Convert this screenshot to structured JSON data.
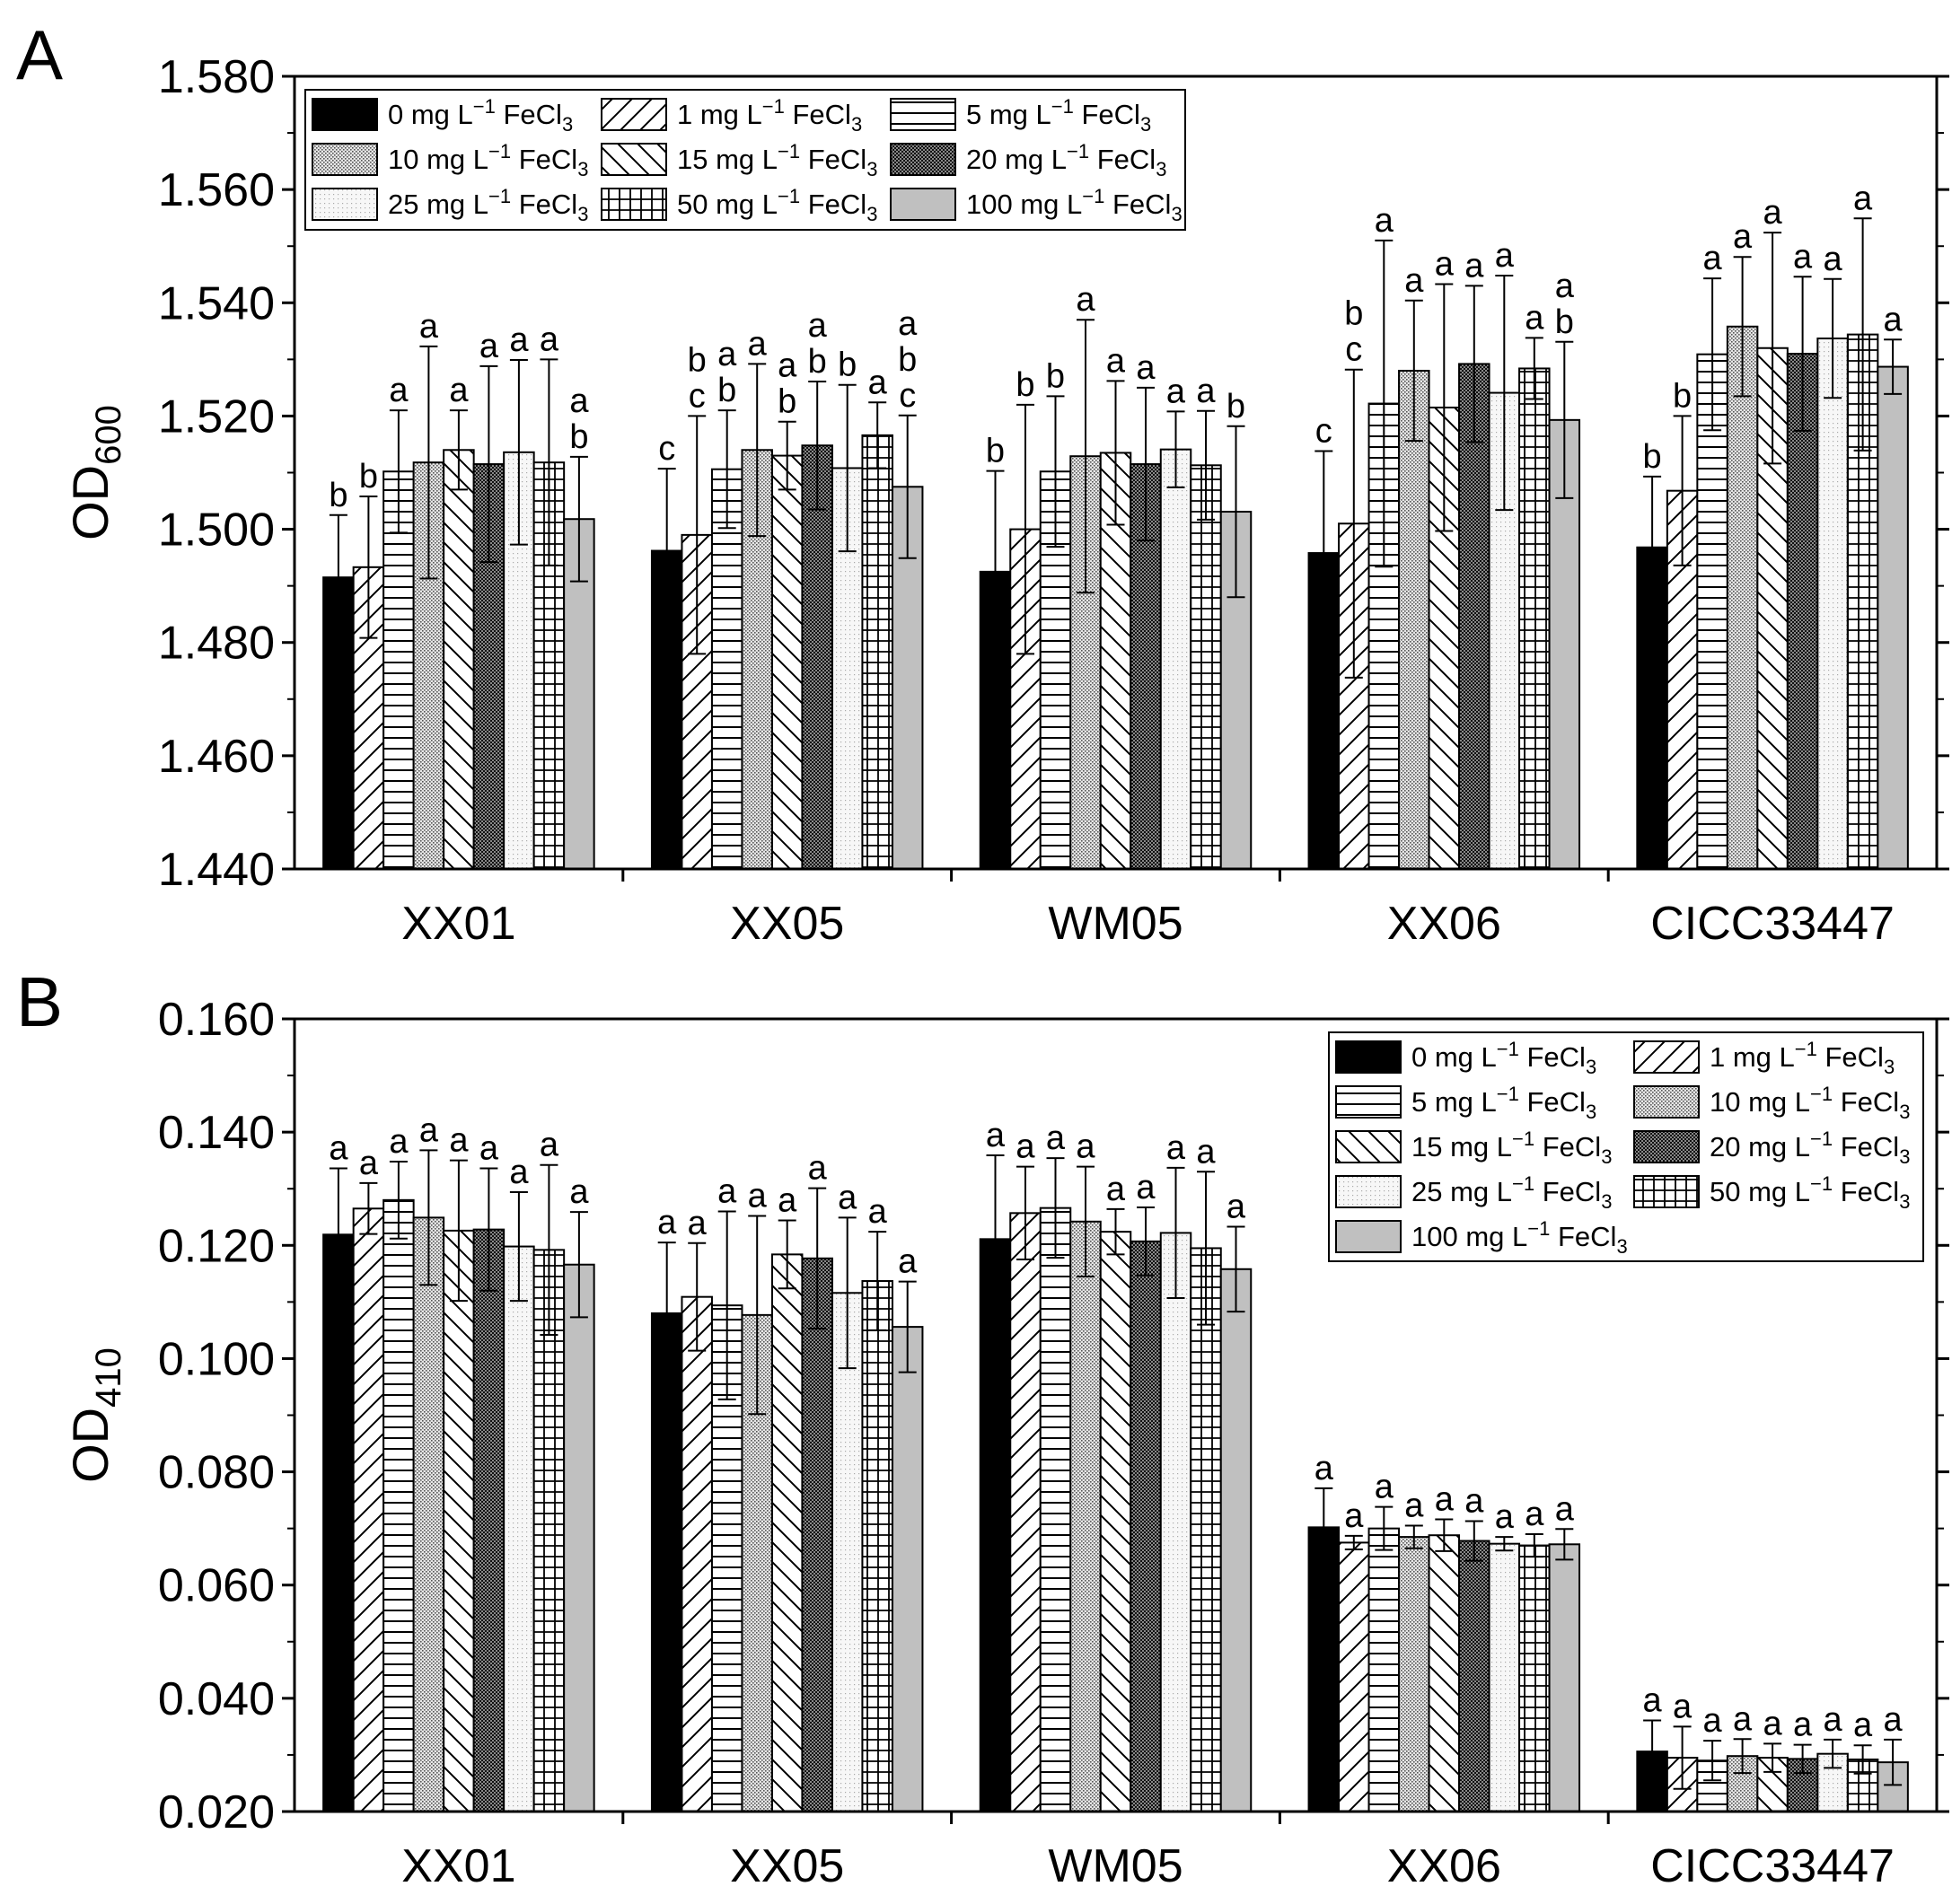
{
  "colors": {
    "axis": "#000000",
    "bar_black": "#000000",
    "bar_gray": "#c0c0c0",
    "bar_white": "#ffffff"
  },
  "legend_entries": [
    {
      "prefix": "0 mg L",
      "sup": "−1",
      "suffix": " FeCl",
      "sub": "3",
      "pattern": "black"
    },
    {
      "prefix": "1 mg L",
      "sup": "−1",
      "suffix": " FeCl",
      "sub": "3",
      "pattern": "diag-up"
    },
    {
      "prefix": "5 mg L",
      "sup": "−1",
      "suffix": " FeCl",
      "sub": "3",
      "pattern": "horiz"
    },
    {
      "prefix": "10 mg L",
      "sup": "−1",
      "suffix": " FeCl",
      "sub": "3",
      "pattern": "fine-dot"
    },
    {
      "prefix": "15 mg L",
      "sup": "−1",
      "suffix": " FeCl",
      "sub": "3",
      "pattern": "diag-down"
    },
    {
      "prefix": "20 mg L",
      "sup": "−1",
      "suffix": " FeCl",
      "sub": "3",
      "pattern": "dense-dot"
    },
    {
      "prefix": "25 mg L",
      "sup": "−1",
      "suffix": " FeCl",
      "sub": "3",
      "pattern": "light-dot"
    },
    {
      "prefix": "50 mg L",
      "sup": "−1",
      "suffix": " FeCl",
      "sub": "3",
      "pattern": "grid"
    },
    {
      "prefix": "100 mg L",
      "sup": "−1",
      "suffix": " FeCl",
      "sub": "3",
      "pattern": "gray"
    }
  ],
  "chart_data": [
    {
      "type": "bar",
      "panel": "A",
      "ylabel": "OD",
      "ylabel_sub": "600",
      "ylim": [
        1.44,
        1.58
      ],
      "yticks": [
        "1.440",
        "1.460",
        "1.480",
        "1.500",
        "1.520",
        "1.540",
        "1.560",
        "1.580"
      ],
      "legend_position": "top-left",
      "categories": [
        "XX01",
        "XX05",
        "WM05",
        "XX06",
        "CICC33447"
      ],
      "series": [
        {
          "name": "0 mg L−1 FeCl3",
          "values": [
            1.4915,
            1.4962,
            1.4925,
            1.4958,
            1.4968
          ],
          "errors": [
            0.011,
            0.0145,
            0.0178,
            0.018,
            0.0125
          ],
          "letters": [
            "b",
            "c",
            "b",
            "c",
            "b"
          ]
        },
        {
          "name": "1 mg L−1 FeCl3",
          "values": [
            1.4933,
            1.499,
            1.5,
            1.501,
            1.5068
          ],
          "errors": [
            0.0125,
            0.021,
            0.022,
            0.0272,
            0.0132
          ],
          "letters": [
            "b",
            "bc",
            "b",
            "bc",
            "b"
          ]
        },
        {
          "name": "5 mg L−1 FeCl3",
          "values": [
            1.5102,
            1.5106,
            1.5102,
            1.5222,
            1.5309
          ],
          "errors": [
            0.0108,
            0.0104,
            0.0133,
            0.0288,
            0.0134
          ],
          "letters": [
            "a",
            "ab",
            "b",
            "a",
            "a"
          ]
        },
        {
          "name": "10 mg L−1 FeCl3",
          "values": [
            1.5118,
            1.514,
            1.5129,
            1.528,
            1.5358
          ],
          "errors": [
            0.0205,
            0.0152,
            0.0241,
            0.0124,
            0.0123
          ],
          "letters": [
            "a",
            "a",
            "a",
            "a",
            "a"
          ]
        },
        {
          "name": "15 mg L−1 FeCl3",
          "values": [
            1.514,
            1.513,
            1.5135,
            1.5215,
            1.532
          ],
          "errors": [
            0.007,
            0.006,
            0.0127,
            0.0218,
            0.0204
          ],
          "letters": [
            "a",
            "ab",
            "a",
            "a",
            "a"
          ]
        },
        {
          "name": "20 mg L−1 FeCl3",
          "values": [
            1.5115,
            1.5148,
            1.5115,
            1.5292,
            1.531
          ],
          "errors": [
            0.0173,
            0.0113,
            0.0135,
            0.0138,
            0.0136
          ],
          "letters": [
            "a",
            "ab",
            "a",
            "a",
            "a"
          ]
        },
        {
          "name": "25 mg L−1 FeCl3",
          "values": [
            1.5136,
            1.5108,
            1.5141,
            1.5241,
            1.5337
          ],
          "errors": [
            0.0163,
            0.0147,
            0.0067,
            0.0207,
            0.0105
          ],
          "letters": [
            "a",
            "b",
            "a",
            "a",
            "a"
          ]
        },
        {
          "name": "50 mg L−1 FeCl3",
          "values": [
            1.5118,
            1.5166,
            1.5113,
            1.5284,
            1.5344
          ],
          "errors": [
            0.0182,
            0.0058,
            0.0096,
            0.0054,
            0.0205
          ],
          "letters": [
            "a",
            "a",
            "a",
            "a",
            "a"
          ]
        },
        {
          "name": "100 mg L−1 FeCl3",
          "values": [
            1.5018,
            1.5075,
            1.5031,
            1.5193,
            1.5287
          ],
          "errors": [
            0.011,
            0.0126,
            0.0151,
            0.0138,
            0.0048
          ],
          "letters": [
            "ab",
            "abc",
            "b",
            "ab",
            "a"
          ]
        }
      ]
    },
    {
      "type": "bar",
      "panel": "B",
      "ylabel": "OD",
      "ylabel_sub": "410",
      "ylim": [
        0.02,
        0.16
      ],
      "yticks": [
        "0.020",
        "0.040",
        "0.060",
        "0.080",
        "0.100",
        "0.120",
        "0.140",
        "0.160"
      ],
      "legend_position": "top-right",
      "categories": [
        "XX01",
        "XX05",
        "WM05",
        "XX06",
        "CICC33447"
      ],
      "series": [
        {
          "name": "0 mg L−1 FeCl3",
          "values": [
            0.1219,
            0.108,
            0.1211,
            0.0702,
            0.0306
          ],
          "errors": [
            0.0117,
            0.0125,
            0.0148,
            0.0069,
            0.0055
          ],
          "letters": [
            "a",
            "a",
            "a",
            "a",
            "a"
          ]
        },
        {
          "name": "1 mg L−1 FeCl3",
          "values": [
            0.1265,
            0.1109,
            0.1257,
            0.0675,
            0.0295
          ],
          "errors": [
            0.0045,
            0.0095,
            0.0082,
            0.0012,
            0.0055
          ],
          "letters": [
            "a",
            "a",
            "a",
            "a",
            "a"
          ]
        },
        {
          "name": "5 mg L−1 FeCl3",
          "values": [
            0.128,
            0.1094,
            0.1266,
            0.07,
            0.029
          ],
          "errors": [
            0.0068,
            0.0166,
            0.0088,
            0.0038,
            0.0035
          ],
          "letters": [
            "a",
            "a",
            "a",
            "a",
            "a"
          ]
        },
        {
          "name": "10 mg L−1 FeCl3",
          "values": [
            0.1249,
            0.1077,
            0.1242,
            0.0685,
            0.0298
          ],
          "errors": [
            0.0119,
            0.0175,
            0.0097,
            0.002,
            0.003
          ],
          "letters": [
            "a",
            "a",
            "a",
            "a",
            "a"
          ]
        },
        {
          "name": "15 mg L−1 FeCl3",
          "values": [
            0.1226,
            0.1184,
            0.1224,
            0.0688,
            0.0295
          ],
          "errors": [
            0.0124,
            0.006,
            0.004,
            0.0028,
            0.0025
          ],
          "letters": [
            "a",
            "a",
            "a",
            "a",
            "a"
          ]
        },
        {
          "name": "20 mg L−1 FeCl3",
          "values": [
            0.1228,
            0.1177,
            0.1207,
            0.0678,
            0.0293
          ],
          "errors": [
            0.0108,
            0.0124,
            0.006,
            0.0035,
            0.0025
          ],
          "letters": [
            "a",
            "a",
            "a",
            "a",
            "a"
          ]
        },
        {
          "name": "25 mg L−1 FeCl3",
          "values": [
            0.1198,
            0.1116,
            0.1222,
            0.0673,
            0.0302
          ],
          "errors": [
            0.0096,
            0.0133,
            0.0115,
            0.0012,
            0.0025
          ],
          "letters": [
            "a",
            "a",
            "a",
            "a",
            "a"
          ]
        },
        {
          "name": "50 mg L−1 FeCl3",
          "values": [
            0.1192,
            0.1137,
            0.1195,
            0.067,
            0.0292
          ],
          "errors": [
            0.015,
            0.0087,
            0.0135,
            0.002,
            0.0025
          ],
          "letters": [
            "a",
            "a",
            "a",
            "a",
            "a"
          ]
        },
        {
          "name": "100 mg L−1 FeCl3",
          "values": [
            0.1166,
            0.1056,
            0.1158,
            0.0672,
            0.0287
          ],
          "errors": [
            0.0093,
            0.008,
            0.0075,
            0.0027,
            0.004
          ],
          "letters": [
            "a",
            "a",
            "a",
            "a",
            "a"
          ]
        }
      ]
    }
  ]
}
